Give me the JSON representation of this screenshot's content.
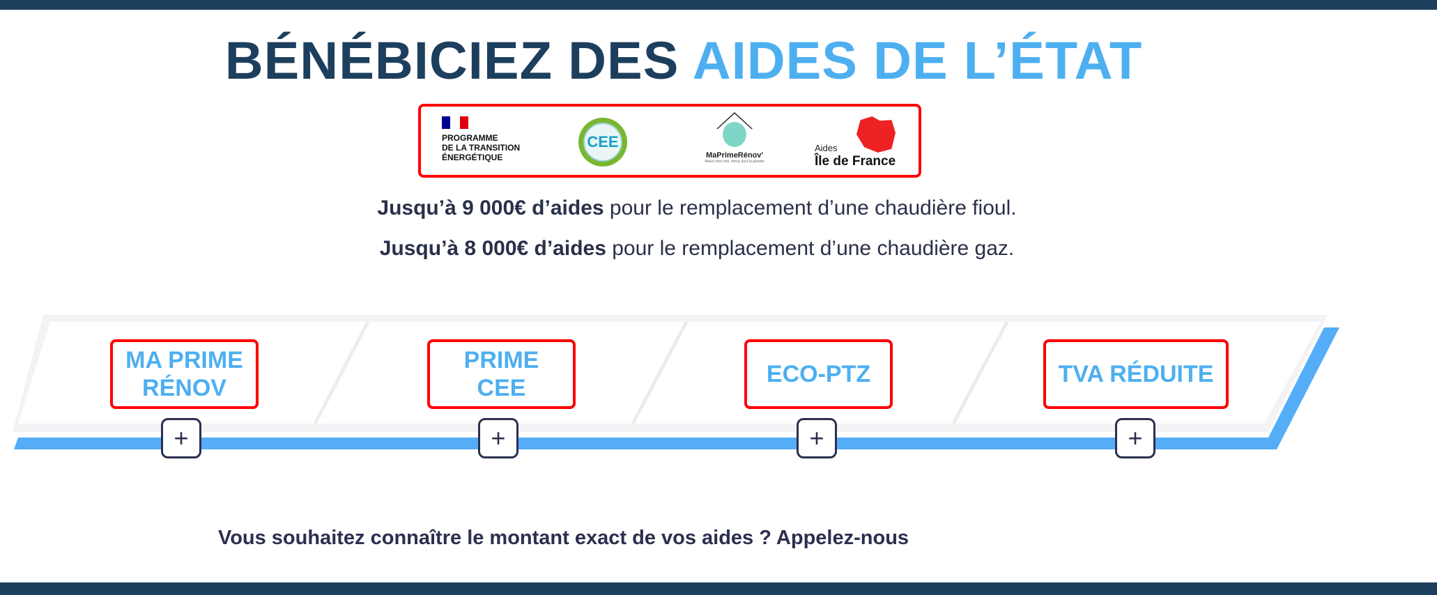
{
  "header": {
    "title_main": "BÉNÉBICIEZ DES ",
    "title_accent": "AIDES DE L’ÉTAT"
  },
  "logos": {
    "programme": "PROGRAMME\nDE LA TRANSITION\nÉNERGÉTIQUE",
    "programme_lines": [
      "PROGRAMME",
      "DE LA TRANSITION",
      "ÉNERGÉTIQUE"
    ],
    "cee": "CEE",
    "maprimerenov": "MaPrimeRénov'",
    "maprimerenov_tagline": "Mieux chez moi, mieux pour la planète",
    "idf_aides": "Aides",
    "idf_name": "Île de France"
  },
  "intro": [
    {
      "bold": "Jusqu’à 9 000€ d’aides",
      "text": " pour le remplacement d’une chaudière fioul."
    },
    {
      "bold": "Jusqu’à 8 000€ d’aides",
      "text": " pour le remplacement d’une chaudière gaz."
    }
  ],
  "aides": [
    {
      "label": "MA PRIME RÉNOV",
      "expand": "+"
    },
    {
      "label": "PRIME CEE",
      "expand": "+"
    },
    {
      "label": "ECO-PTZ",
      "expand": "+"
    },
    {
      "label": "TVA RÉDUITE",
      "expand": "+"
    }
  ],
  "footer": {
    "cta": "Vous souhaitez connaître le montant exact de vos aides ? Appelez-nous"
  },
  "colors": {
    "navy": "#1d3f5e",
    "accent": "#4eaff0",
    "band": "#55adf8",
    "highlight": "#ff0000"
  }
}
